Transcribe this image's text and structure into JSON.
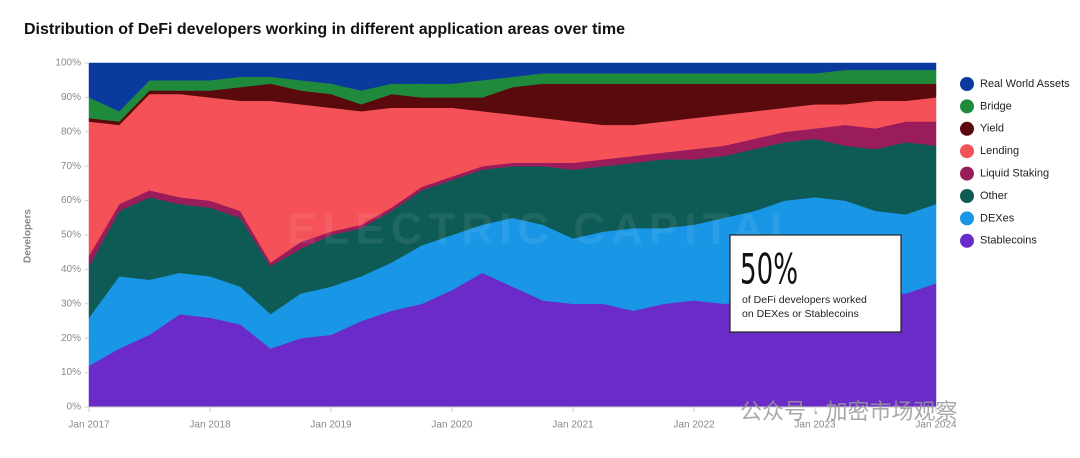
{
  "chart_data": {
    "type": "stacked-area",
    "title": "Distribution of DeFi developers working in different application areas over time",
    "y_label": "Developers",
    "x": [
      "2017-01",
      "2017-04",
      "2017-07",
      "2017-10",
      "2018-01",
      "2018-04",
      "2018-07",
      "2018-10",
      "2019-01",
      "2019-04",
      "2019-07",
      "2019-10",
      "2020-01",
      "2020-04",
      "2020-07",
      "2020-10",
      "2021-01",
      "2021-04",
      "2021-07",
      "2021-10",
      "2022-01",
      "2022-04",
      "2022-07",
      "2022-10",
      "2023-01",
      "2023-04",
      "2023-07",
      "2023-10",
      "2024-01"
    ],
    "xlim": [
      "2017-01",
      "2024-01"
    ],
    "xticks": [
      {
        "value": "2017-01",
        "label": "Jan 2017"
      },
      {
        "value": "2018-01",
        "label": "Jan 2018"
      },
      {
        "value": "2019-01",
        "label": "Jan 2019"
      },
      {
        "value": "2020-01",
        "label": "Jan 2020"
      },
      {
        "value": "2021-01",
        "label": "Jan 2021"
      },
      {
        "value": "2022-01",
        "label": "Jan 2022"
      },
      {
        "value": "2023-01",
        "label": "Jan 2023"
      },
      {
        "value": "2024-01",
        "label": "Jan 2024"
      }
    ],
    "ylim": [
      0,
      100
    ],
    "yticks": [
      {
        "value": 0,
        "label": "0%"
      },
      {
        "value": 10,
        "label": "10%"
      },
      {
        "value": 20,
        "label": "20%"
      },
      {
        "value": 30,
        "label": "30%"
      },
      {
        "value": 40,
        "label": "40%"
      },
      {
        "value": 50,
        "label": "50%"
      },
      {
        "value": 60,
        "label": "60%"
      },
      {
        "value": 70,
        "label": "70%"
      },
      {
        "value": 80,
        "label": "80%"
      },
      {
        "value": 90,
        "label": "90%"
      },
      {
        "value": 100,
        "label": "100%"
      }
    ],
    "series": [
      {
        "name": "Stablecoins",
        "color": "#6a2bc8",
        "values": [
          12,
          17,
          21,
          27,
          26,
          24,
          17,
          20,
          21,
          25,
          28,
          30,
          34,
          39,
          35,
          31,
          30,
          30,
          28,
          30,
          31,
          30,
          31,
          32,
          34,
          34,
          33,
          33,
          36
        ]
      },
      {
        "name": "DEXes",
        "color": "#1a96e6",
        "values": [
          14,
          21,
          16,
          12,
          12,
          11,
          10,
          13,
          14,
          13,
          14,
          17,
          16,
          14,
          20,
          22,
          19,
          21,
          24,
          22,
          22,
          25,
          26,
          28,
          27,
          26,
          24,
          23,
          23
        ]
      },
      {
        "name": "Other",
        "color": "#0e5b55",
        "values": [
          15,
          19,
          24,
          20,
          20,
          20,
          14,
          13,
          15,
          14,
          15,
          16,
          16,
          16,
          15,
          17,
          20,
          19,
          19,
          20,
          19,
          18,
          18,
          17,
          17,
          16,
          18,
          21,
          17
        ]
      },
      {
        "name": "Liquid Staking",
        "color": "#9b1c5a",
        "values": [
          3,
          2,
          2,
          2,
          2,
          2,
          1,
          2,
          1,
          1,
          1,
          1,
          1,
          1,
          1,
          1,
          2,
          2,
          2,
          2,
          3,
          3,
          3,
          3,
          3,
          6,
          6,
          6,
          7
        ]
      },
      {
        "name": "Lending",
        "color": "#f55158",
        "values": [
          39,
          23,
          28,
          30,
          30,
          32,
          47,
          40,
          36,
          33,
          29,
          23,
          20,
          16,
          14,
          13,
          12,
          10,
          9,
          9,
          9,
          9,
          8,
          7,
          7,
          6,
          8,
          6,
          7
        ]
      },
      {
        "name": "Yield",
        "color": "#5a0a0c",
        "values": [
          1,
          1,
          1,
          1,
          2,
          4,
          5,
          4,
          4,
          2,
          4,
          3,
          3,
          4,
          8,
          10,
          11,
          12,
          12,
          11,
          10,
          9,
          8,
          7,
          6,
          6,
          5,
          5,
          4
        ]
      },
      {
        "name": "Bridge",
        "color": "#208a3c",
        "values": [
          6,
          3,
          3,
          3,
          3,
          3,
          2,
          3,
          3,
          4,
          3,
          4,
          4,
          5,
          3,
          3,
          3,
          3,
          3,
          3,
          3,
          3,
          3,
          3,
          3,
          4,
          4,
          4,
          4
        ]
      },
      {
        "name": "Real World Assets",
        "color": "#0b3a9e",
        "values": [
          10,
          14,
          5,
          5,
          5,
          4,
          4,
          5,
          6,
          8,
          6,
          6,
          6,
          5,
          4,
          3,
          3,
          3,
          3,
          3,
          3,
          3,
          3,
          3,
          3,
          2,
          2,
          2,
          2
        ]
      }
    ],
    "legend": "right",
    "annotation": {
      "headline": "50%",
      "lines": [
        "of DeFi developers worked",
        "on DEXes or Stablecoins"
      ]
    },
    "watermarks": [
      "ELECTRIC CAPITAL",
      "公众号 · 加密市场观察"
    ]
  }
}
